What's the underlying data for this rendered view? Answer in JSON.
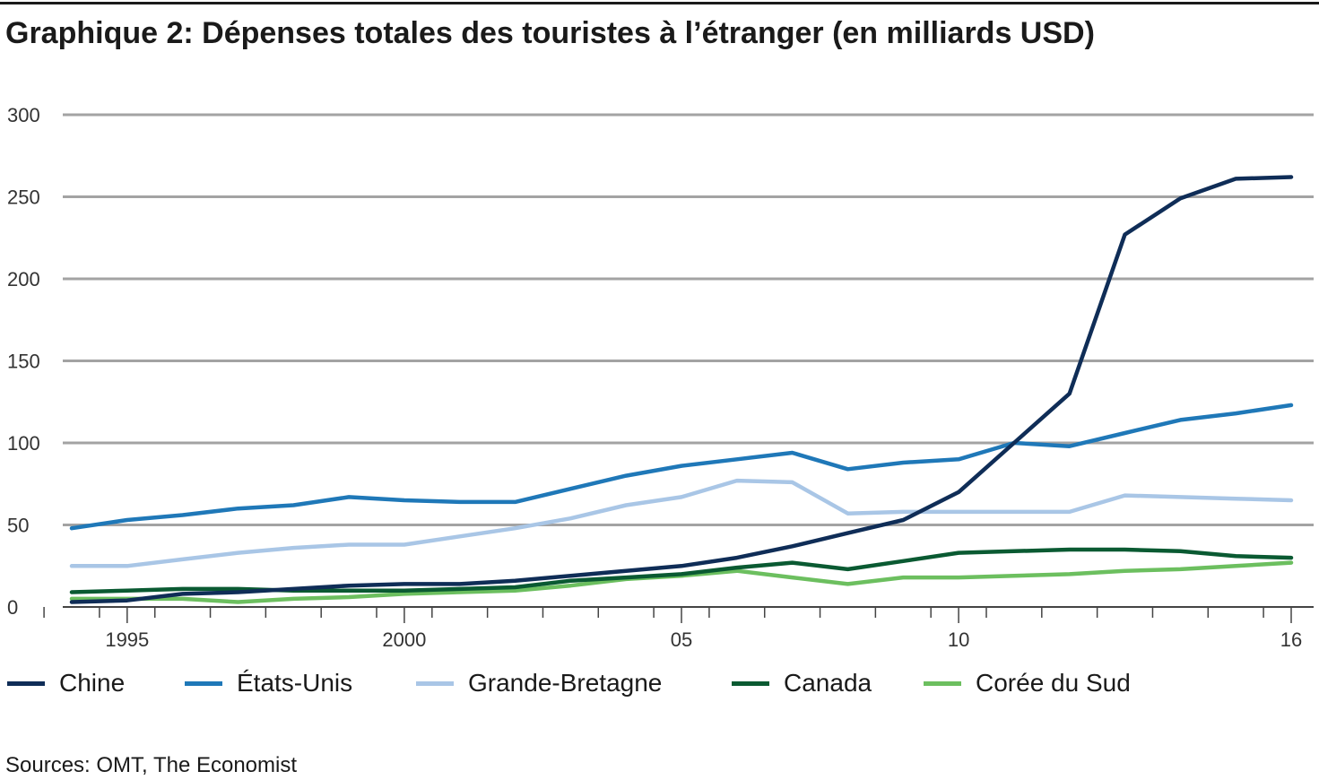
{
  "title": "Graphique 2: Dépenses totales des touristes à l’étranger (en milliards USD)",
  "source": "Sources: OMT, The Economist",
  "colors": {
    "Chine": "#0f2d57",
    "États-Unis": "#1f78b8",
    "Grande-Bretagne": "#a9c6e6",
    "Canada": "#0a5a32",
    "Corée du Sud": "#6cbf5f",
    "grid": "#a3a3a3",
    "axis": "#444444"
  },
  "chart_data": {
    "type": "line",
    "title": "Graphique 2: Dépenses totales des touristes à l’étranger (en milliards USD)",
    "xlabel": "",
    "ylabel": "",
    "ylim": [
      0,
      300
    ],
    "xlim": [
      1993.5,
      2016.5
    ],
    "grid": true,
    "legend_position": "bottom",
    "yticks": [
      0,
      50,
      100,
      150,
      200,
      250,
      300
    ],
    "ytick_labels": [
      "0",
      "50",
      "100",
      "150",
      "200",
      "250",
      "300"
    ],
    "xtick_labels": [
      {
        "year": 1995,
        "label": "1995"
      },
      {
        "year": 2000,
        "label": "2000"
      },
      {
        "year": 2005,
        "label": "05"
      },
      {
        "year": 2010,
        "label": "10"
      },
      {
        "year": 2016,
        "label": "16"
      }
    ],
    "x": [
      1994,
      1995,
      1996,
      1997,
      1998,
      1999,
      2000,
      2001,
      2002,
      2003,
      2004,
      2005,
      2006,
      2007,
      2008,
      2009,
      2010,
      2011,
      2012,
      2013,
      2014,
      2015,
      2016
    ],
    "series": [
      {
        "name": "Chine",
        "values": [
          3,
          4,
          8,
          9,
          11,
          13,
          14,
          14,
          16,
          19,
          22,
          25,
          30,
          37,
          45,
          53,
          70,
          100,
          130,
          227,
          249,
          261,
          262
        ]
      },
      {
        "name": "États-Unis",
        "values": [
          48,
          53,
          56,
          60,
          62,
          67,
          65,
          64,
          64,
          72,
          80,
          86,
          90,
          94,
          84,
          88,
          90,
          100,
          98,
          106,
          114,
          118,
          123
        ]
      },
      {
        "name": "Grande-Bretagne",
        "values": [
          25,
          25,
          29,
          33,
          36,
          38,
          38,
          43,
          48,
          54,
          62,
          67,
          77,
          76,
          57,
          58,
          58,
          58,
          58,
          68,
          67,
          66,
          65
        ]
      },
      {
        "name": "Canada",
        "values": [
          9,
          10,
          11,
          11,
          10,
          10,
          10,
          11,
          12,
          16,
          18,
          20,
          24,
          27,
          23,
          28,
          33,
          34,
          35,
          35,
          34,
          31,
          30
        ]
      },
      {
        "name": "Corée du Sud",
        "values": [
          5,
          5,
          5,
          3,
          5,
          6,
          8,
          9,
          10,
          13,
          17,
          19,
          22,
          18,
          14,
          18,
          18,
          19,
          20,
          22,
          23,
          25,
          27
        ]
      }
    ]
  }
}
